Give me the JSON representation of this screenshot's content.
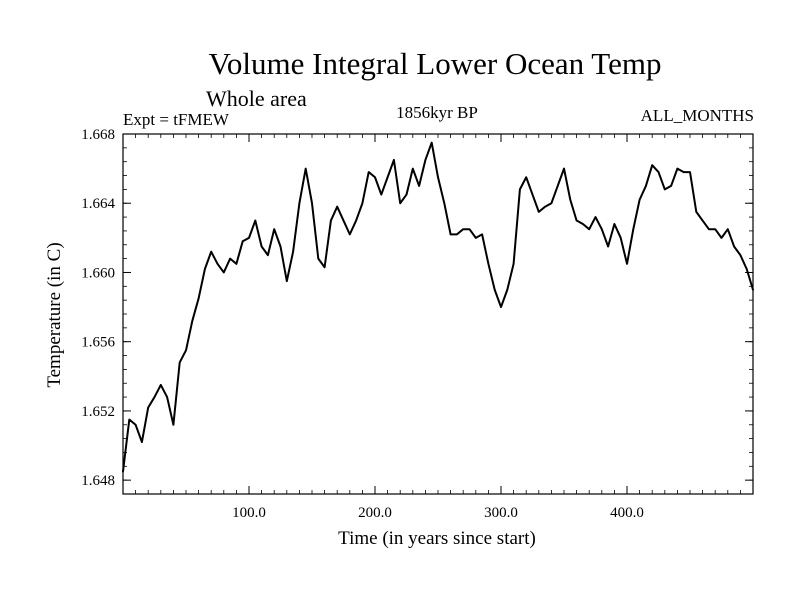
{
  "chart_data": {
    "type": "line",
    "title": "Volume Integral Lower Ocean Temp",
    "subtitle": "Whole area",
    "experiment_label": "Expt = tFMEW",
    "period_label": "1856kyr BP",
    "months_label": "ALL_MONTHS",
    "xlabel": "Time (in years since start)",
    "ylabel": "Temperature (in C)",
    "xlim": [
      0,
      500
    ],
    "ylim": [
      1.6472,
      1.668
    ],
    "x_ticks": [
      100,
      200,
      300,
      400
    ],
    "x_tick_labels": [
      "100.0",
      "200.0",
      "300.0",
      "400.0"
    ],
    "y_ticks": [
      1.648,
      1.652,
      1.656,
      1.66,
      1.664,
      1.668
    ],
    "y_tick_labels": [
      "1.648",
      "1.652",
      "1.656",
      "1.660",
      "1.664",
      "1.668"
    ],
    "grid": false,
    "series": [
      {
        "name": "Volume integral lower ocean temperature",
        "color": "#000000",
        "x": [
          0,
          5,
          10,
          15,
          20,
          25,
          30,
          35,
          40,
          45,
          50,
          55,
          60,
          65,
          70,
          75,
          80,
          85,
          90,
          95,
          100,
          105,
          110,
          115,
          120,
          125,
          130,
          135,
          140,
          145,
          150,
          155,
          160,
          165,
          170,
          175,
          180,
          185,
          190,
          195,
          200,
          205,
          210,
          215,
          220,
          225,
          230,
          235,
          240,
          245,
          250,
          255,
          260,
          265,
          270,
          275,
          280,
          285,
          290,
          295,
          300,
          305,
          310,
          315,
          320,
          325,
          330,
          335,
          340,
          345,
          350,
          355,
          360,
          365,
          370,
          375,
          380,
          385,
          390,
          395,
          400,
          405,
          410,
          415,
          420,
          425,
          430,
          435,
          440,
          445,
          450,
          455,
          460,
          465,
          470,
          475,
          480,
          485,
          490,
          495,
          500
        ],
        "values": [
          1.6485,
          1.6515,
          1.6512,
          1.6502,
          1.6522,
          1.6528,
          1.6535,
          1.6528,
          1.6512,
          1.6548,
          1.6555,
          1.6572,
          1.6585,
          1.6602,
          1.6612,
          1.6605,
          1.66,
          1.6608,
          1.6605,
          1.6618,
          1.662,
          1.663,
          1.6615,
          1.661,
          1.6625,
          1.6615,
          1.6595,
          1.6612,
          1.664,
          1.666,
          1.664,
          1.6608,
          1.6603,
          1.663,
          1.6638,
          1.663,
          1.6622,
          1.663,
          1.664,
          1.6658,
          1.6655,
          1.6645,
          1.6655,
          1.6665,
          1.664,
          1.6645,
          1.666,
          1.665,
          1.6665,
          1.6675,
          1.6655,
          1.664,
          1.6622,
          1.6622,
          1.6625,
          1.6625,
          1.662,
          1.6622,
          1.6605,
          1.659,
          1.658,
          1.659,
          1.6605,
          1.6648,
          1.6655,
          1.6645,
          1.6635,
          1.6638,
          1.664,
          1.665,
          1.666,
          1.6642,
          1.663,
          1.6628,
          1.6625,
          1.6632,
          1.6625,
          1.6615,
          1.6628,
          1.662,
          1.6605,
          1.6625,
          1.6642,
          1.665,
          1.6662,
          1.6658,
          1.6648,
          1.665,
          1.666,
          1.6658,
          1.6658,
          1.6635,
          1.663,
          1.6625,
          1.6625,
          1.662,
          1.6625,
          1.6615,
          1.661,
          1.6602,
          1.659
        ]
      }
    ]
  }
}
